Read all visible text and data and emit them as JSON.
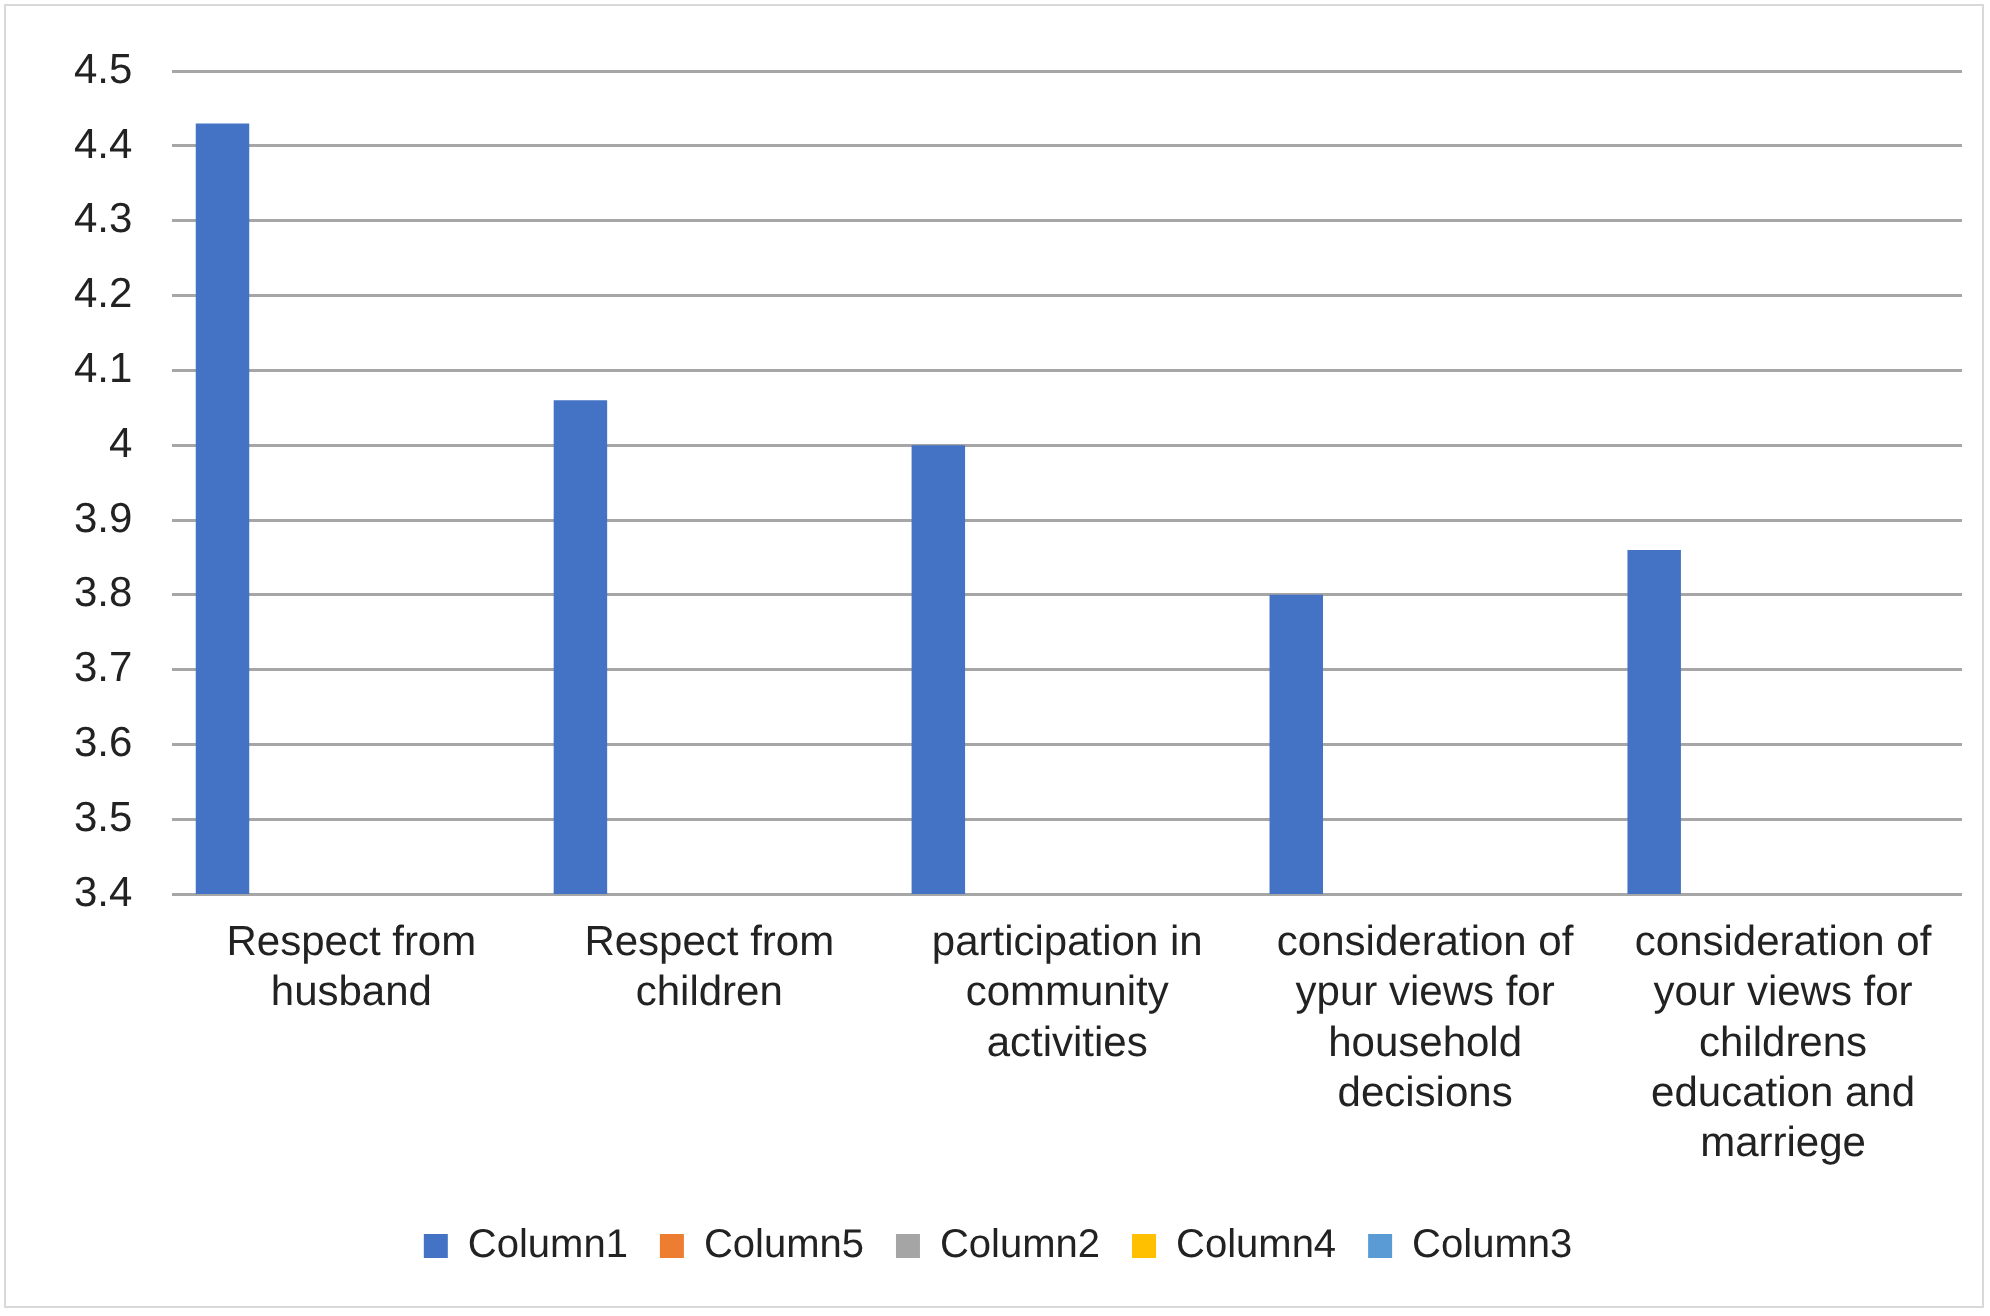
{
  "chart_data": {
    "type": "bar",
    "categories": [
      "Respect from husband",
      "Respect from children",
      "participation in community activities",
      "consideration of ypur views for household decisions",
      "consideration of your views for childrens education and marriege"
    ],
    "series": [
      {
        "name": "Column1",
        "color": "#4472c4",
        "values": [
          4.43,
          4.06,
          4.0,
          3.8,
          3.86
        ]
      },
      {
        "name": "Column5",
        "color": "#ed7d31",
        "values": [
          null,
          null,
          null,
          null,
          null
        ]
      },
      {
        "name": "Column2",
        "color": "#a5a5a5",
        "values": [
          null,
          null,
          null,
          null,
          null
        ]
      },
      {
        "name": "Column4",
        "color": "#ffc000",
        "values": [
          null,
          null,
          null,
          null,
          null
        ]
      },
      {
        "name": "Column3",
        "color": "#5b9bd5",
        "values": [
          null,
          null,
          null,
          null,
          null
        ]
      }
    ],
    "ylim": [
      3.4,
      4.5
    ],
    "yticks": [
      3.4,
      3.5,
      3.6,
      3.7,
      3.8,
      3.9,
      4,
      4.1,
      4.2,
      4.3,
      4.4,
      4.5
    ],
    "grid": "y",
    "legend": "bottom"
  }
}
